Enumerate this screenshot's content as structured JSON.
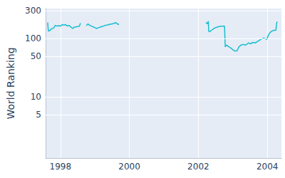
{
  "chart_data": {
    "type": "line",
    "y_label": "World Ranking",
    "log": "y",
    "grid": true,
    "color": "#17becf",
    "x": [
      1997.63,
      1997.65,
      1997.7,
      1997.75,
      1997.8,
      1997.85,
      1997.9,
      1997.95,
      1998.0,
      1998.05,
      1998.1,
      1998.15,
      1998.2,
      1998.25,
      1998.3,
      1998.35,
      1998.4,
      1998.45,
      1998.5,
      1998.55,
      1998.58,
      1998.65,
      1998.75,
      1998.8,
      1998.85,
      1998.9,
      1998.95,
      1999.0,
      1999.05,
      1999.1,
      1999.15,
      1999.2,
      1999.25,
      1999.3,
      1999.35,
      1999.4,
      1999.45,
      1999.5,
      1999.55,
      1999.6,
      1999.65,
      1999.7,
      2000.5,
      2002.22,
      2002.26,
      2002.29,
      2002.3,
      2002.33,
      2002.38,
      2002.45,
      2002.52,
      2002.6,
      2002.68,
      2002.76,
      2002.78,
      2002.82,
      2002.88,
      2002.95,
      2003.0,
      2003.05,
      2003.12,
      2003.18,
      2003.24,
      2003.3,
      2003.38,
      2003.45,
      2003.52,
      2003.58,
      2003.65,
      2003.72,
      2003.8,
      2003.9,
      2003.98,
      2004.0,
      2004.03,
      2004.08,
      2004.14,
      2004.2,
      2004.25,
      2004.27,
      2004.29
    ],
    "values": [
      190,
      135,
      140,
      150,
      152,
      170,
      165,
      168,
      165,
      175,
      172,
      175,
      165,
      170,
      160,
      150,
      158,
      160,
      162,
      165,
      185,
      null,
      168,
      180,
      170,
      165,
      160,
      155,
      150,
      155,
      158,
      162,
      165,
      170,
      172,
      175,
      178,
      180,
      183,
      190,
      180,
      175,
      null,
      190,
      180,
      200,
      135,
      132,
      140,
      150,
      157,
      162,
      165,
      165,
      73,
      78,
      73,
      69,
      65,
      62,
      62,
      73,
      78,
      80,
      78,
      85,
      82,
      87,
      85,
      90,
      97,
      103,
      97,
      103,
      115,
      128,
      136,
      140,
      140,
      185,
      196
    ],
    "xlim": [
      1997.57,
      2004.41
    ],
    "xticks": [
      1998,
      2000,
      2002,
      2004
    ],
    "ylim": [
      0.9,
      330
    ],
    "yticks": [
      5,
      10,
      50,
      100,
      300
    ]
  }
}
